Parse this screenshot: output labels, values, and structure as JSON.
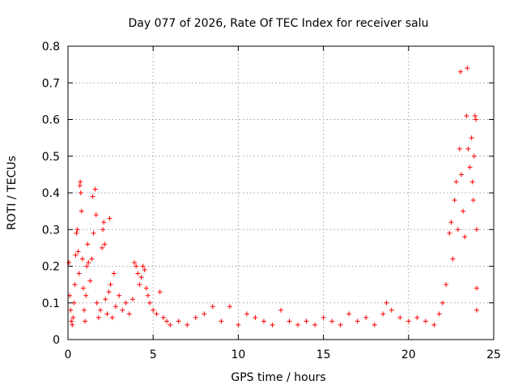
{
  "chart_data": {
    "type": "scatter",
    "title": "Day 077 of 2026, Rate Of TEC Index for receiver salu",
    "xlabel": "GPS time / hours",
    "ylabel": "ROTI / TECUs",
    "xlim": [
      0,
      25
    ],
    "ylim": [
      0,
      0.8
    ],
    "x_ticks": [
      0,
      5,
      10,
      15,
      20,
      25
    ],
    "y_ticks": [
      0,
      0.1,
      0.2,
      0.3,
      0.4,
      0.5,
      0.6,
      0.7,
      0.8
    ],
    "x_tick_labels": [
      "0",
      "5",
      "10",
      "15",
      "20",
      "25"
    ],
    "y_tick_labels": [
      "0",
      "0.1",
      "0.2",
      "0.3",
      "0.4",
      "0.5",
      "0.6",
      "0.7",
      "0.8"
    ],
    "grid": true,
    "marker": "+",
    "color": "#ff0000",
    "series": [
      {
        "points": [
          [
            0.05,
            0.21
          ],
          [
            0.1,
            0.12
          ],
          [
            0.15,
            0.08
          ],
          [
            0.2,
            0.05
          ],
          [
            0.25,
            0.04
          ],
          [
            0.3,
            0.06
          ],
          [
            0.35,
            0.1
          ],
          [
            0.4,
            0.15
          ],
          [
            0.45,
            0.23
          ],
          [
            0.5,
            0.29
          ],
          [
            0.55,
            0.3
          ],
          [
            0.6,
            0.24
          ],
          [
            0.65,
            0.18
          ],
          [
            0.7,
            0.42
          ],
          [
            0.72,
            0.43
          ],
          [
            0.75,
            0.4
          ],
          [
            0.8,
            0.35
          ],
          [
            0.85,
            0.22
          ],
          [
            0.9,
            0.14
          ],
          [
            0.95,
            0.08
          ],
          [
            1.0,
            0.05
          ],
          [
            1.05,
            0.12
          ],
          [
            1.1,
            0.2
          ],
          [
            1.15,
            0.26
          ],
          [
            1.2,
            0.21
          ],
          [
            1.3,
            0.16
          ],
          [
            1.4,
            0.22
          ],
          [
            1.45,
            0.39
          ],
          [
            1.5,
            0.29
          ],
          [
            1.6,
            0.41
          ],
          [
            1.65,
            0.34
          ],
          [
            1.7,
            0.1
          ],
          [
            1.8,
            0.06
          ],
          [
            1.9,
            0.08
          ],
          [
            2.0,
            0.25
          ],
          [
            2.05,
            0.3
          ],
          [
            2.1,
            0.32
          ],
          [
            2.15,
            0.26
          ],
          [
            2.2,
            0.11
          ],
          [
            2.3,
            0.07
          ],
          [
            2.4,
            0.13
          ],
          [
            2.45,
            0.33
          ],
          [
            2.5,
            0.15
          ],
          [
            2.6,
            0.06
          ],
          [
            2.7,
            0.18
          ],
          [
            2.8,
            0.09
          ],
          [
            3.0,
            0.12
          ],
          [
            3.2,
            0.08
          ],
          [
            3.4,
            0.1
          ],
          [
            3.6,
            0.07
          ],
          [
            3.8,
            0.11
          ],
          [
            3.9,
            0.21
          ],
          [
            4.0,
            0.2
          ],
          [
            4.1,
            0.18
          ],
          [
            4.2,
            0.15
          ],
          [
            4.3,
            0.17
          ],
          [
            4.4,
            0.2
          ],
          [
            4.5,
            0.19
          ],
          [
            4.6,
            0.14
          ],
          [
            4.7,
            0.12
          ],
          [
            4.8,
            0.1
          ],
          [
            5.0,
            0.08
          ],
          [
            5.2,
            0.07
          ],
          [
            5.4,
            0.13
          ],
          [
            5.6,
            0.06
          ],
          [
            5.8,
            0.05
          ],
          [
            6.0,
            0.04
          ],
          [
            6.5,
            0.05
          ],
          [
            7.0,
            0.04
          ],
          [
            7.5,
            0.06
          ],
          [
            8.0,
            0.07
          ],
          [
            8.5,
            0.09
          ],
          [
            9.0,
            0.05
          ],
          [
            9.5,
            0.09
          ],
          [
            10.0,
            0.04
          ],
          [
            10.5,
            0.07
          ],
          [
            11.0,
            0.06
          ],
          [
            11.5,
            0.05
          ],
          [
            12.0,
            0.04
          ],
          [
            12.5,
            0.08
          ],
          [
            13.0,
            0.05
          ],
          [
            13.5,
            0.04
          ],
          [
            14.0,
            0.05
          ],
          [
            14.5,
            0.04
          ],
          [
            15.0,
            0.06
          ],
          [
            15.5,
            0.05
          ],
          [
            16.0,
            0.04
          ],
          [
            16.5,
            0.07
          ],
          [
            17.0,
            0.05
          ],
          [
            17.5,
            0.06
          ],
          [
            18.0,
            0.04
          ],
          [
            18.5,
            0.07
          ],
          [
            18.7,
            0.1
          ],
          [
            19.0,
            0.08
          ],
          [
            19.5,
            0.06
          ],
          [
            20.0,
            0.05
          ],
          [
            20.5,
            0.06
          ],
          [
            21.0,
            0.05
          ],
          [
            21.5,
            0.04
          ],
          [
            21.8,
            0.07
          ],
          [
            22.0,
            0.1
          ],
          [
            22.2,
            0.15
          ],
          [
            22.4,
            0.29
          ],
          [
            22.5,
            0.32
          ],
          [
            22.6,
            0.22
          ],
          [
            22.7,
            0.38
          ],
          [
            22.8,
            0.43
          ],
          [
            22.9,
            0.3
          ],
          [
            23.0,
            0.52
          ],
          [
            23.05,
            0.73
          ],
          [
            23.1,
            0.45
          ],
          [
            23.2,
            0.35
          ],
          [
            23.3,
            0.28
          ],
          [
            23.4,
            0.61
          ],
          [
            23.45,
            0.74
          ],
          [
            23.5,
            0.52
          ],
          [
            23.6,
            0.47
          ],
          [
            23.7,
            0.55
          ],
          [
            23.75,
            0.43
          ],
          [
            23.8,
            0.38
          ],
          [
            23.85,
            0.5
          ],
          [
            23.9,
            0.61
          ],
          [
            23.95,
            0.6
          ],
          [
            24.0,
            0.3
          ],
          [
            24.0,
            0.14
          ],
          [
            24.0,
            0.08
          ]
        ]
      }
    ]
  }
}
